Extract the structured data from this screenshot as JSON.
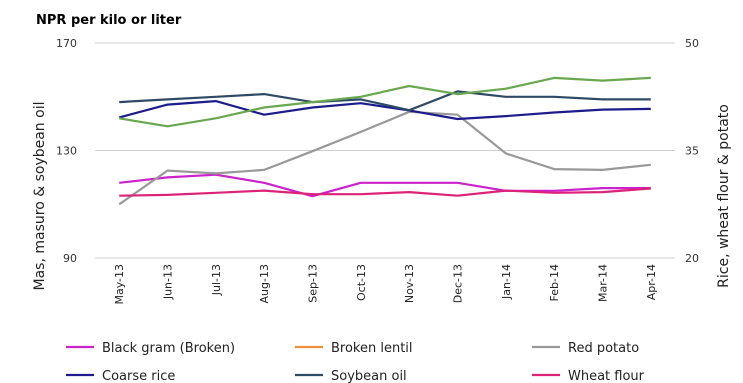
{
  "chart_data": {
    "type": "line",
    "title": "NPR per kilo or liter",
    "y_left_label": "Mas, masuro & soybean oil",
    "y_right_label": "Rice, wheat flour & potato",
    "y_left_ticks": [
      "170",
      "130",
      "90"
    ],
    "y_right_ticks": [
      "50",
      "35",
      "20"
    ],
    "y_left_range": [
      90,
      170
    ],
    "y_right_range": [
      20,
      50
    ],
    "grid": "horizontal",
    "legend_position": "bottom",
    "categories": [
      "May-13",
      "Jun-13",
      "Jul-13",
      "Aug-13",
      "Sep-13",
      "Oct-13",
      "Nov-13",
      "Dec-13",
      "Jan-14",
      "Feb-14",
      "Mar-14",
      "Apr-14"
    ],
    "series": [
      {
        "name": "Black gram (Broken)",
        "axis": "left",
        "color": "#cc22cc",
        "values": [
          118,
          120,
          121,
          118,
          113,
          118,
          118,
          118,
          115,
          115,
          116,
          116
        ]
      },
      {
        "name": "Broken lentil",
        "axis": "left",
        "color": "#f0903a",
        "values": [
          null,
          null,
          null,
          null,
          null,
          null,
          null,
          null,
          null,
          null,
          null,
          null
        ]
      },
      {
        "name": "Red potato",
        "axis": "right",
        "color": "#999999",
        "values": [
          27.5,
          32.2,
          31.8,
          32.3,
          34.9,
          37.6,
          40.4,
          40.0,
          34.6,
          32.4,
          32.3,
          33.0
        ]
      },
      {
        "name": "Coarse rice",
        "axis": "right",
        "color": "#1c1c8c",
        "values": [
          39.6,
          41.4,
          41.9,
          40.0,
          41.0,
          41.6,
          40.6,
          39.4,
          39.8,
          40.3,
          40.7,
          40.8
        ]
      },
      {
        "name": "Soybean oil",
        "axis": "left",
        "color": "#2f4a66",
        "values": [
          148,
          149,
          150,
          151,
          148,
          149,
          145,
          152,
          150,
          150,
          149,
          149
        ]
      },
      {
        "name": "Wheat flour",
        "axis": "right",
        "color": "#dd2277",
        "values": [
          28.7,
          28.8,
          29.1,
          29.4,
          28.9,
          28.9,
          29.2,
          28.7,
          29.4,
          29.1,
          29.2,
          29.7
        ]
      },
      {
        "name": "",
        "axis": "left",
        "color": "#6aa84f",
        "values": [
          142,
          139,
          142,
          146,
          148,
          150,
          154,
          151,
          153,
          157,
          156,
          157
        ]
      }
    ]
  }
}
